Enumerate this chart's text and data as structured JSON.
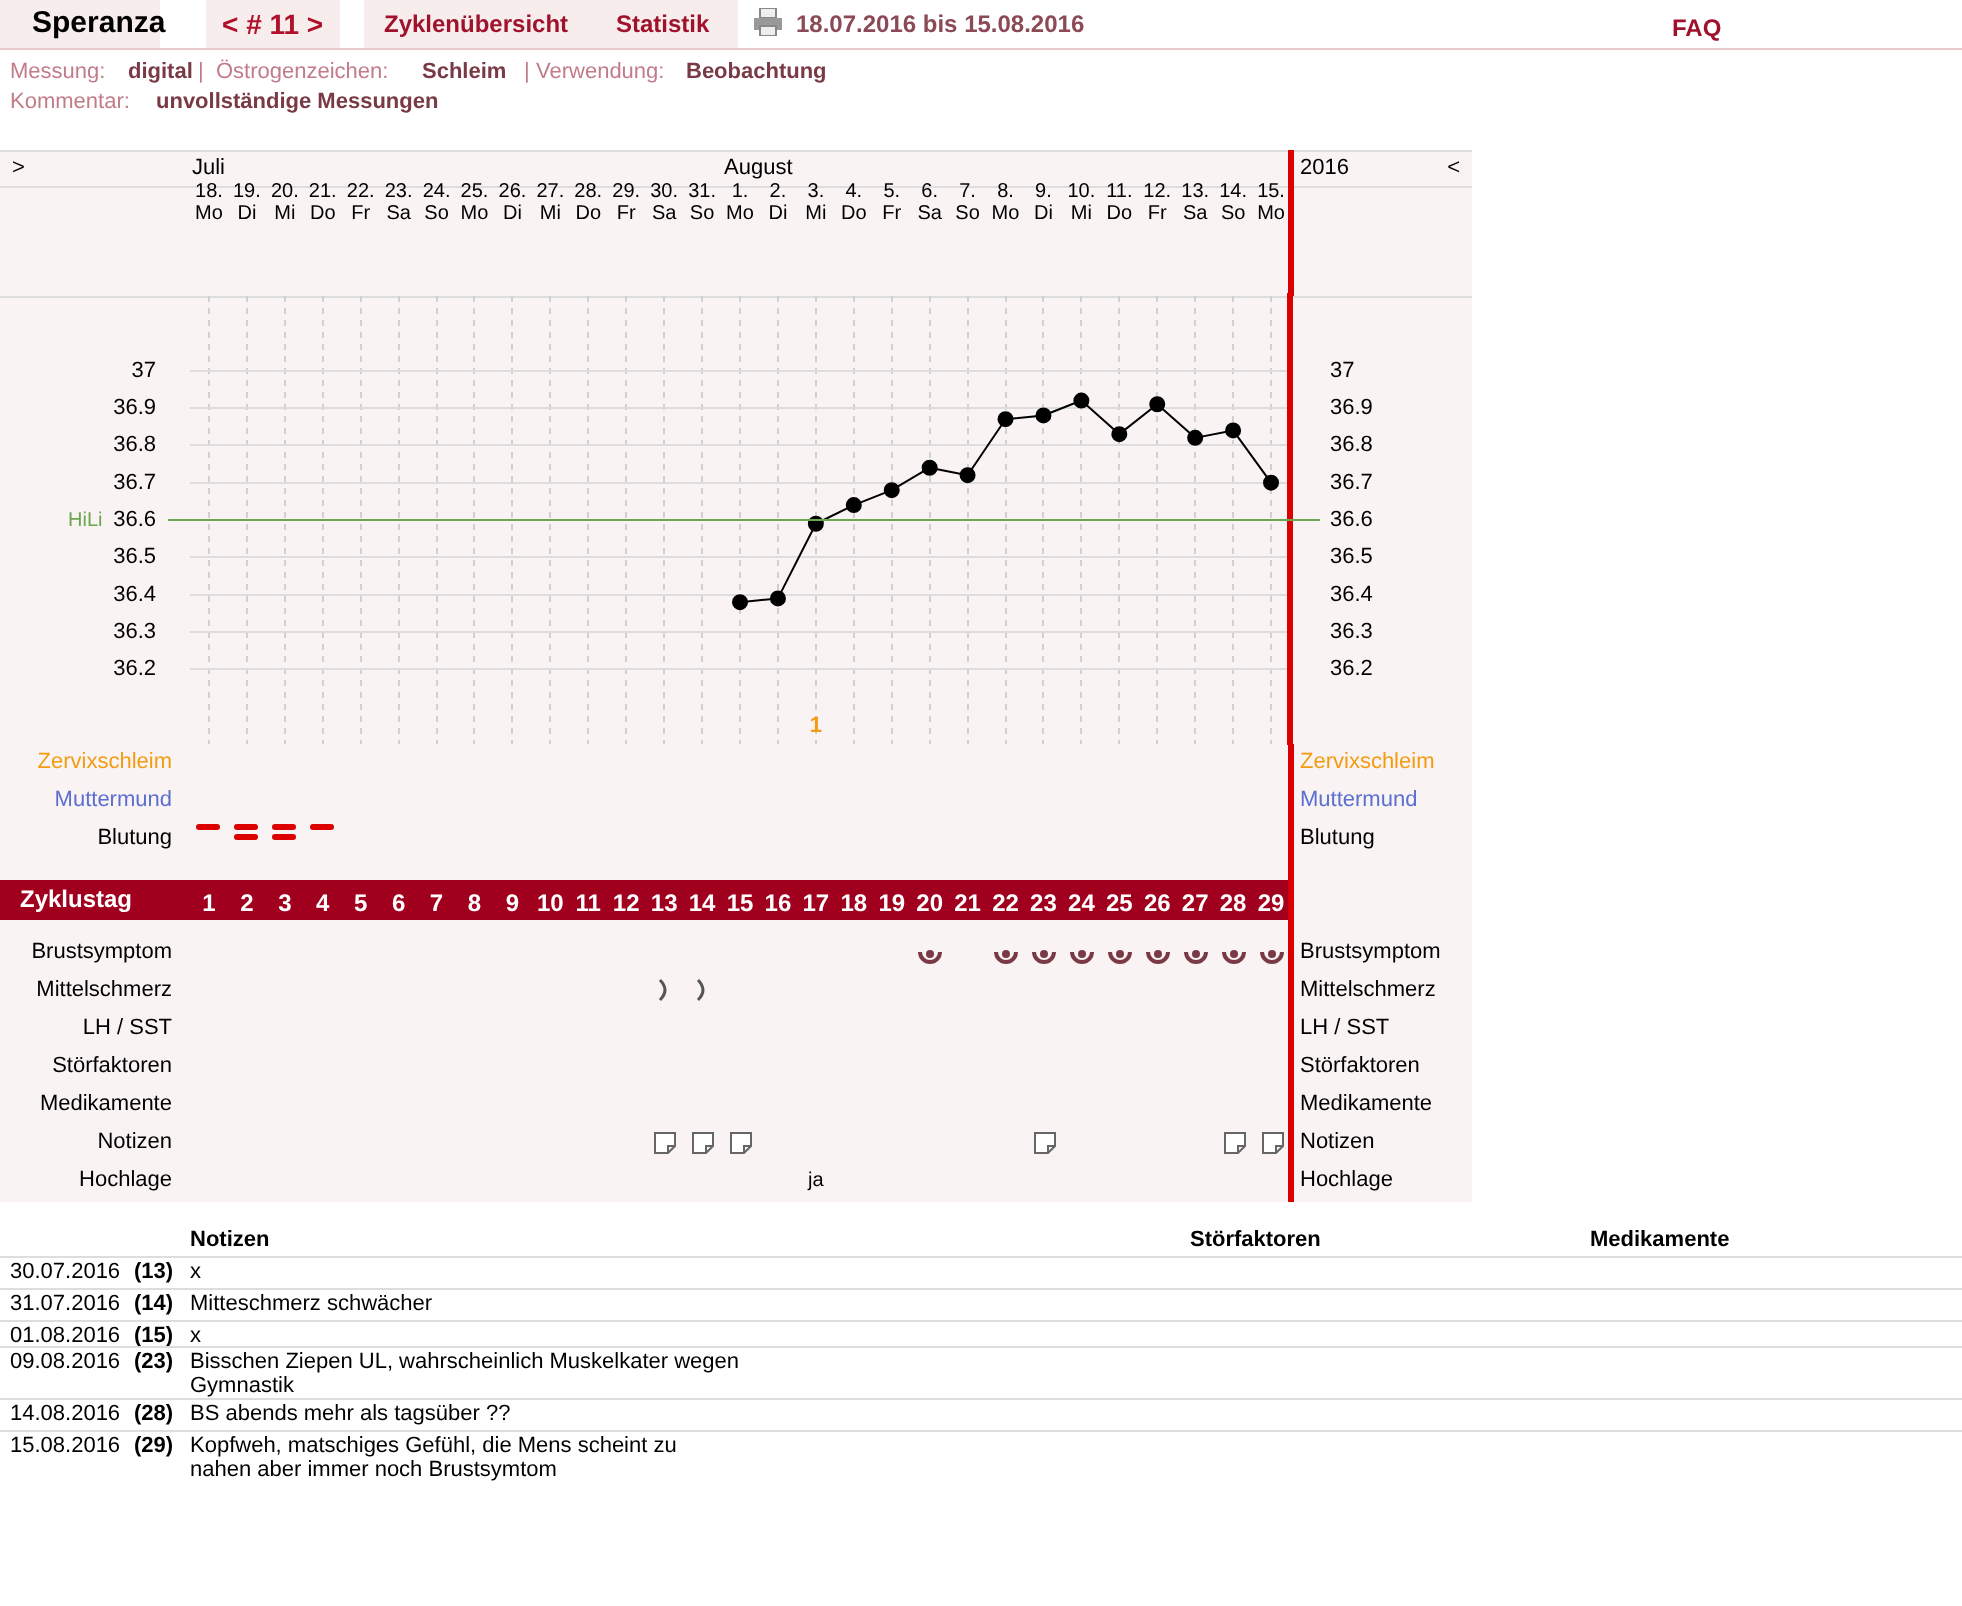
{
  "chart_data": [
    {
      "type": "other",
      "title": "Speranza",
      "annotations": [
        "< # 11 >",
        "Zyklenübersicht",
        "Statistik",
        "18.07.2016 bis 15.08.2016",
        "FAQ",
        "Messung:",
        "digital",
        "|",
        "Östrogenzeichen:",
        "Schleim",
        "|",
        "Verwendung:",
        "Beobachtung",
        "Kommentar:",
        "unvollständige Messungen"
      ]
    },
    {
      "type": "line",
      "categories": [
        "18. Mo",
        "19. Di",
        "20. Mi",
        "21. Do",
        "22. Fr",
        "23. Sa",
        "24. So",
        "25. Mo",
        "26. Di",
        "27. Mi",
        "28. Do",
        "29. Fr",
        "30. Sa",
        "31. So",
        "1. Mo",
        "2. Di",
        "3. Mi",
        "4. Do",
        "5. Fr",
        "6. Sa",
        "7. So",
        "8. Mo",
        "9. Di",
        "10. Mi",
        "11. Do",
        "12. Fr",
        "13. Sa",
        "14. So",
        "15. Mo"
      ],
      "series": [
        {
          "color": "#000000",
          "values": [
            null,
            null,
            null,
            null,
            null,
            null,
            null,
            null,
            null,
            null,
            null,
            null,
            null,
            null,
            36.38,
            36.39,
            36.59,
            36.64,
            36.68,
            36.74,
            36.72,
            36.87,
            36.88,
            36.92,
            36.83,
            36.91,
            36.82,
            36.84,
            36.7
          ]
        }
      ],
      "marker": "circle",
      "ylim": [
        36.0,
        37.2
      ],
      "yticks": [
        36.2,
        36.3,
        36.4,
        36.5,
        36.6,
        36.7,
        36.8,
        36.9,
        37
      ],
      "y2lim": [
        36.0,
        37.2
      ],
      "y2ticks": [
        36.2,
        36.3,
        36.4,
        36.5,
        36.6,
        36.7,
        36.8,
        36.9,
        37
      ],
      "grid": true,
      "ref_lines": [
        {
          "axis": "y",
          "value": 36.6,
          "label": "HiLi",
          "color": "#6aa84f"
        }
      ],
      "x2label": "Zyklustag",
      "x2lim": [
        0.5,
        29.5
      ],
      "x2ticks": [
        1,
        2,
        3,
        4,
        5,
        6,
        7,
        8,
        9,
        10,
        11,
        12,
        13,
        14,
        15,
        16,
        17,
        18,
        19,
        20,
        21,
        22,
        23,
        24,
        25,
        26,
        27,
        28,
        29
      ],
      "annotations": [
        ">",
        "Juli",
        "August",
        "2016",
        "<",
        "1"
      ]
    },
    {
      "type": "other",
      "annotations": [
        "Zervixschleim",
        "Muttermund",
        "Blutung",
        "Brustsymptom",
        "Mittelschmerz",
        "LH / SST",
        "Störfaktoren",
        "Medikamente",
        "Notizen",
        "Hochlage",
        "Zervixschleim",
        "Muttermund",
        "Blutung",
        "Brustsymptom",
        "Mittelschmerz",
        "LH / SST",
        "Störfaktoren",
        "Medikamente",
        "Notizen",
        "Hochlage",
        "ja"
      ]
    },
    {
      "type": "other",
      "annotations": [
        "Notizen",
        "Störfaktoren",
        "Medikamente",
        "30.07.2016",
        "(13)",
        "x",
        "31.07.2016",
        "(14)",
        "Mitteschmerz schwächer",
        "01.08.2016",
        "(15)",
        "x",
        "09.08.2016",
        "(23)",
        "Bisschen Ziepen UL, wahrscheinlich Muskelkater wegen Gymnastik",
        "14.08.2016",
        "(28)",
        "BS abends mehr als tagsüber ??",
        "15.08.2016",
        "(29)",
        "Kopfweh, matschiges Gefühl, die Mens scheint zu nahen aber immer noch Brustsymtom"
      ]
    }
  ]
}
